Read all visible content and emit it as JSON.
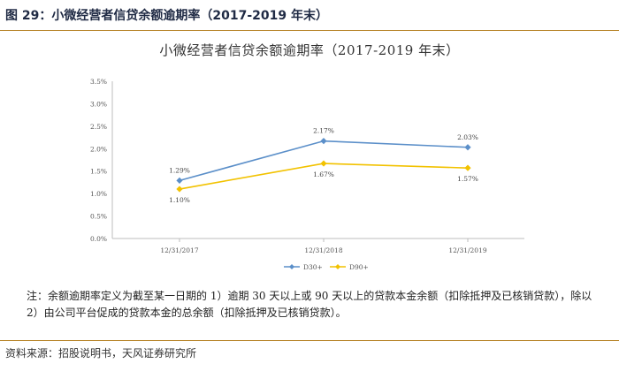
{
  "figure_label": "图 29：小微经营者信贷余额逾期率（2017-2019 年末）",
  "source": "资料来源：招股说明书，天风证券研究所",
  "note": "注：余额逾期率定义为截至某一日期的 1）逾期 30 天以上或 90 天以上的贷款本金余额（扣除抵押及已核销贷款），除以 2）由公司平台促成的贷款本金的总余额（扣除抵押及已核销贷款）。",
  "colors": {
    "rule": "#b8862b",
    "d30": "#5b8fc9",
    "d90": "#f2c200",
    "grid": "#d8d8d8"
  },
  "chart_data": {
    "type": "line",
    "title": "小微经营者信贷余额逾期率（2017-2019 年末）",
    "categories": [
      "12/31/2017",
      "12/31/2018",
      "12/31/2019"
    ],
    "series": [
      {
        "name": "D30+",
        "values": [
          1.29,
          2.17,
          2.03
        ],
        "labels": [
          "1.29%",
          "2.17%",
          "2.03%"
        ],
        "color": "#5b8fc9",
        "marker": "diamond"
      },
      {
        "name": "D90+",
        "values": [
          1.1,
          1.67,
          1.57
        ],
        "labels": [
          "1.10%",
          "1.67%",
          "1.57%"
        ],
        "color": "#f2c200",
        "marker": "diamond"
      }
    ],
    "yticks": [
      "0.0%",
      "0.5%",
      "1.0%",
      "1.5%",
      "2.0%",
      "2.5%",
      "3.0%",
      "3.5%"
    ],
    "ylim": [
      0,
      3.5
    ],
    "grid": false,
    "legend": "bottom"
  }
}
